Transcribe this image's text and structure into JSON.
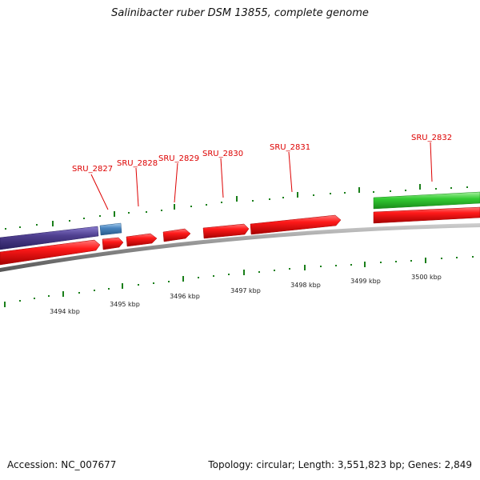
{
  "title": "Salinibacter ruber DSM 13855, complete genome",
  "footer": {
    "accession": "Accession: NC_007677",
    "summary": "Topology: circular; Length: 3,551,823 bp; Genes: 2,849"
  },
  "scale": {
    "labels": [
      "3494 kbp",
      "3495 kbp",
      "3496 kbp",
      "3497 kbp",
      "3498 kbp",
      "3499 kbp",
      "3500 kbp"
    ],
    "tick_color": "#1a7f1a"
  },
  "genes": [
    {
      "name": "SRU_2827"
    },
    {
      "name": "SRU_2828"
    },
    {
      "name": "SRU_2829"
    },
    {
      "name": "SRU_2830"
    },
    {
      "name": "SRU_2831"
    },
    {
      "name": "SRU_2832"
    }
  ],
  "colors": {
    "cds": "#ee1111",
    "gene_label": "#dd0000",
    "gene_blue": "#4f3f8f",
    "gene_lightblue": "#4a86c0",
    "gene_green": "#33cc33",
    "backbone": "#8a8a8a"
  }
}
